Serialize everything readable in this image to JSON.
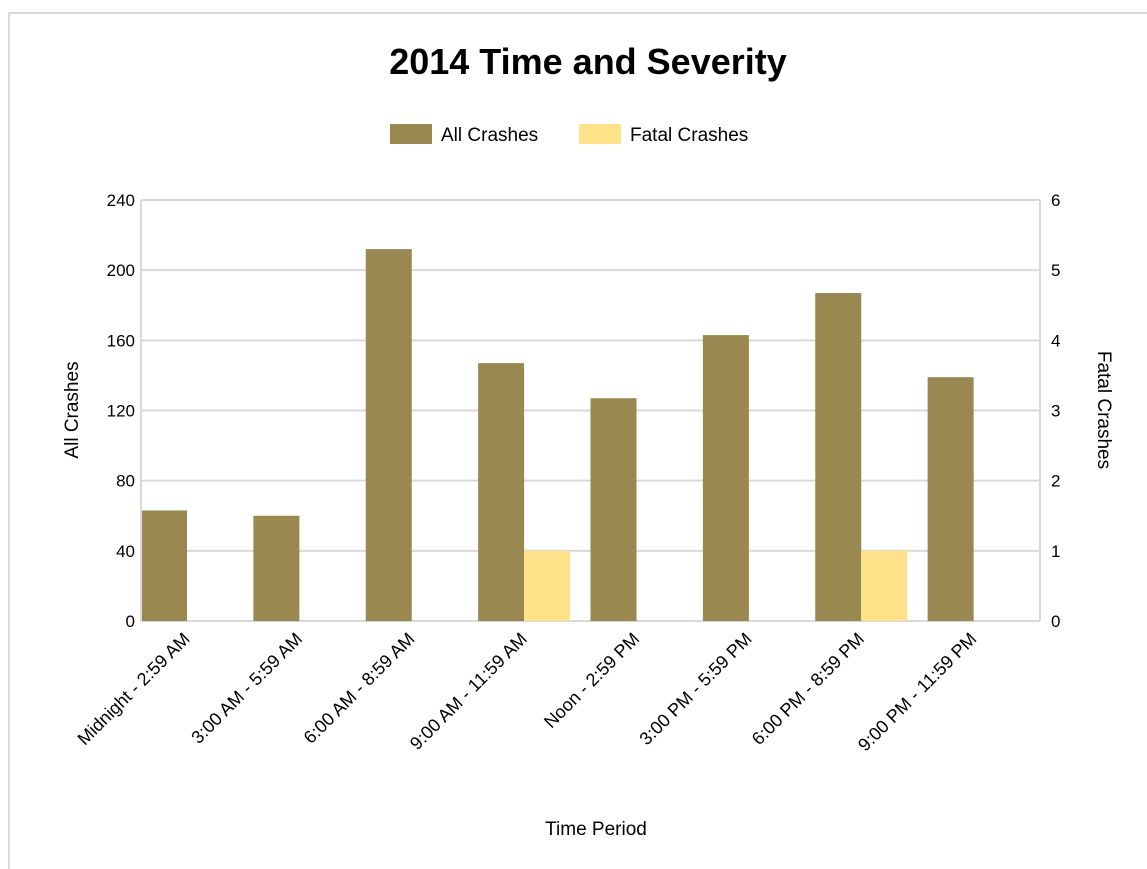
{
  "chart_data": {
    "type": "bar",
    "title": "2014 Time and Severity",
    "xlabel": "Time Period",
    "ylabel": "All Crashes",
    "y2label": "Fatal Crashes",
    "categories": [
      "Midnight - 2:59 AM",
      "3:00 AM - 5:59 AM",
      "6:00 AM - 8:59 AM",
      "9:00 AM - 11:59 AM",
      "Noon - 2:59 PM",
      "3:00 PM - 5:59 PM",
      "6:00 PM - 8:59 PM",
      "9:00 PM - 11:59 PM"
    ],
    "series": [
      {
        "name": "All Crashes",
        "axis": "left",
        "color": "#998850",
        "values": [
          63,
          60,
          212,
          147,
          127,
          163,
          187,
          139
        ]
      },
      {
        "name": "Fatal Crashes",
        "axis": "right",
        "color": "#ffe28a",
        "values": [
          0,
          0,
          0,
          1,
          0,
          0,
          1,
          0
        ]
      }
    ],
    "ylim": [
      0,
      240
    ],
    "y2lim": [
      0,
      6
    ],
    "yticks": [
      "0",
      "40",
      "80",
      "120",
      "160",
      "200",
      "240"
    ],
    "y2ticks": [
      "0",
      "1",
      "2",
      "3",
      "4",
      "5",
      "6"
    ],
    "grid": true,
    "legend": "top-center"
  }
}
